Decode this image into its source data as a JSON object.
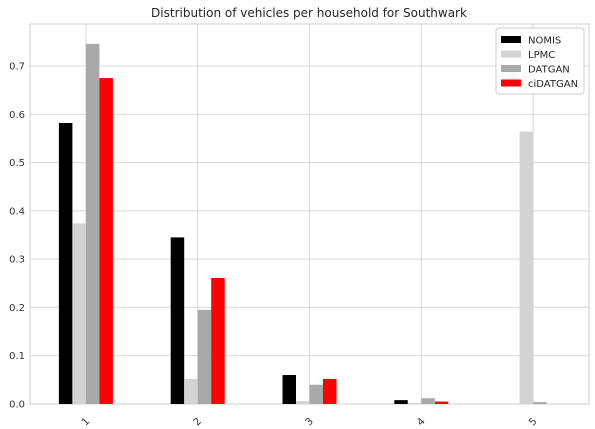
{
  "chart_data": {
    "type": "bar",
    "title": "Distribution of vehicles per household for Southwark",
    "xlabel": "",
    "ylabel": "",
    "categories": [
      "1",
      "2",
      "3",
      "4",
      "5"
    ],
    "ylim": [
      0,
      0.787
    ],
    "yticks": [
      "0.0",
      "0.1",
      "0.2",
      "0.3",
      "0.4",
      "0.5",
      "0.6",
      "0.7"
    ],
    "grid": true,
    "legend_position": "top-right",
    "series": [
      {
        "name": "NOMIS",
        "color": "#000000",
        "values": [
          0.582,
          0.345,
          0.06,
          0.008,
          0.0
        ]
      },
      {
        "name": "LPMC",
        "color": "#d3d3d3",
        "values": [
          0.374,
          0.052,
          0.006,
          0.002,
          0.564
        ]
      },
      {
        "name": "DATGAN",
        "color": "#a9a9a9",
        "values": [
          0.746,
          0.195,
          0.04,
          0.012,
          0.004
        ]
      },
      {
        "name": "ciDATGAN",
        "color": "#ff0000",
        "values": [
          0.675,
          0.261,
          0.052,
          0.005,
          0.0
        ]
      }
    ]
  }
}
